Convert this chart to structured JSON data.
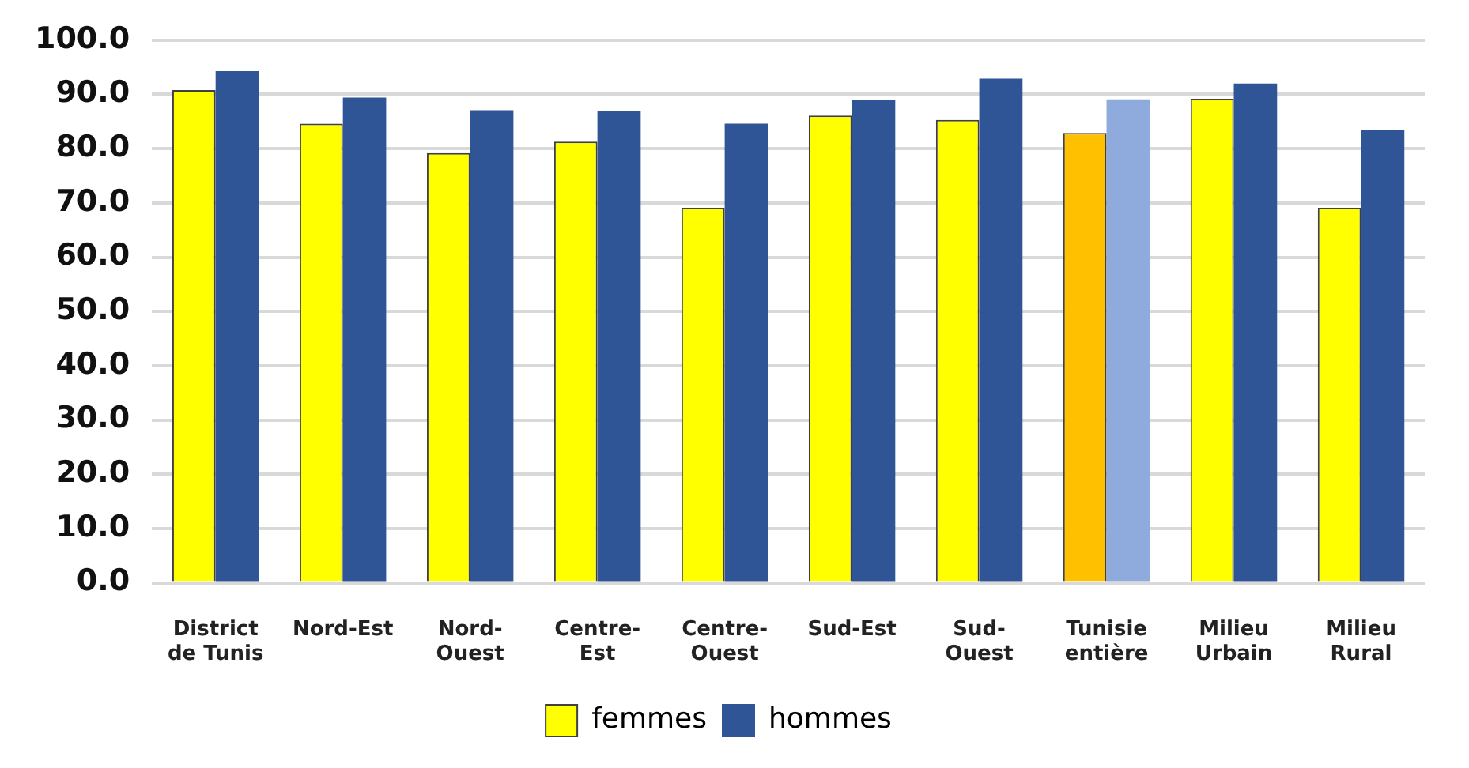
{
  "chart_data": {
    "type": "bar",
    "categories": [
      "District de Tunis",
      "Nord-Est",
      "Nord-Ouest",
      "Centre-Est",
      "Centre-Ouest",
      "Sud-Est",
      "Sud-Ouest",
      "Tunisie entière",
      "Milieu Urbain",
      "Milieu Rural"
    ],
    "series": [
      {
        "name": "femmes",
        "color": "#ffff00",
        "colors": [
          "#ffff00",
          "#ffff00",
          "#ffff00",
          "#ffff00",
          "#ffff00",
          "#ffff00",
          "#ffff00",
          "#ffc000",
          "#ffff00",
          "#ffff00"
        ],
        "values": [
          90.8,
          84.6,
          79.2,
          81.3,
          69.1,
          86.1,
          85.3,
          82.9,
          89.2,
          69.1
        ]
      },
      {
        "name": "hommes",
        "color": "#2f5597",
        "colors": [
          "#2f5597",
          "#2f5597",
          "#2f5597",
          "#2f5597",
          "#2f5597",
          "#2f5597",
          "#2f5597",
          "#8faadc",
          "#2f5597",
          "#2f5597"
        ],
        "values": [
          94.3,
          89.4,
          87.1,
          86.9,
          84.6,
          88.9,
          92.9,
          89.1,
          92.0,
          83.4
        ]
      }
    ],
    "ylim": [
      0,
      100
    ],
    "yticks": [
      {
        "value": 0,
        "label": "0.0"
      },
      {
        "value": 10,
        "label": "10.0"
      },
      {
        "value": 20,
        "label": "20.0"
      },
      {
        "value": 30,
        "label": "30.0"
      },
      {
        "value": 40,
        "label": "40.0"
      },
      {
        "value": 50,
        "label": "50.0"
      },
      {
        "value": 60,
        "label": "60.0"
      },
      {
        "value": 70,
        "label": "70.0"
      },
      {
        "value": 80,
        "label": "80.0"
      },
      {
        "value": 90,
        "label": "90.0"
      },
      {
        "value": 100,
        "label": "100.0"
      }
    ],
    "grid": "y",
    "legend": "bottom"
  }
}
